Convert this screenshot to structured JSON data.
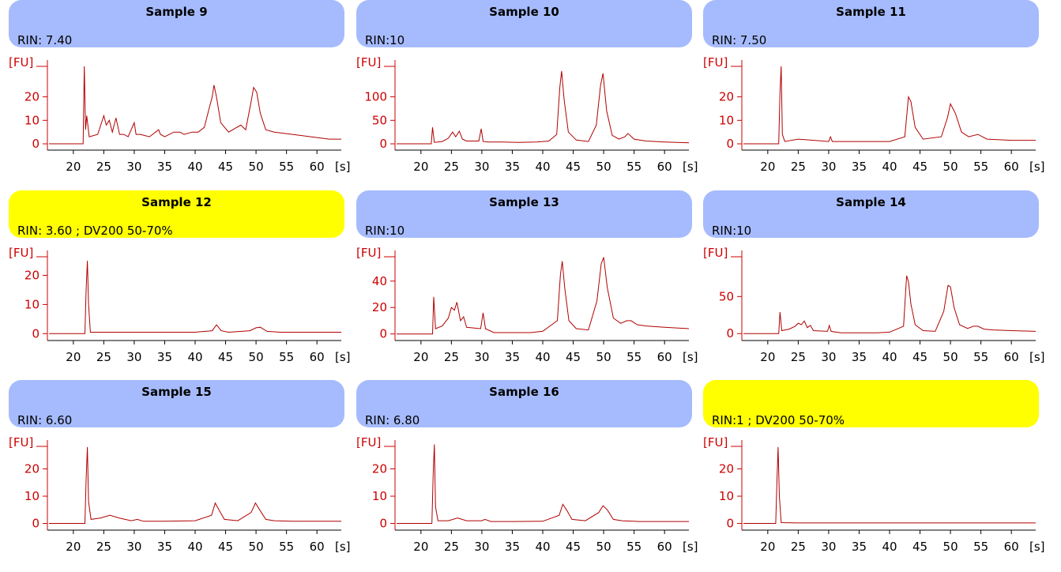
{
  "colors": {
    "blue_header": "#a6bbfd",
    "yellow_header": "#ffff00",
    "trace": "#b00000",
    "axis_red": "#cc0000",
    "axis_black": "#000000"
  },
  "chart_data": [
    {
      "type": "line",
      "title": "Sample 9",
      "rin": "RIN: 7.40",
      "header_color": "blue",
      "ylabel": "[FU]",
      "xlabel": "[s]",
      "x_range": [
        16,
        64
      ],
      "ylim": [
        -1,
        35
      ],
      "y_ticks": [
        "0",
        "10",
        "20"
      ],
      "y_tick_values": [
        0,
        10,
        20
      ],
      "x_ticks": [
        "20",
        "25",
        "30",
        "35",
        "40",
        "45",
        "50",
        "55",
        "60"
      ],
      "x": [
        16,
        21.6,
        21.8,
        22.0,
        22.2,
        22.6,
        24,
        25,
        25.4,
        25.9,
        26.4,
        27,
        27.6,
        28.3,
        29,
        30,
        30.3,
        31,
        32.5,
        34,
        34.3,
        35,
        36.5,
        37.5,
        38.2,
        39.5,
        40.5,
        41.5,
        42.3,
        42.8,
        43.1,
        43.5,
        44.2,
        45.5,
        47.5,
        48.3,
        49.2,
        49.6,
        50.1,
        50.7,
        51.6,
        53,
        56,
        59,
        62,
        64
      ],
      "values": [
        0,
        0,
        33,
        6,
        12,
        3,
        4,
        12,
        8,
        10,
        5,
        11,
        4,
        4,
        3,
        9,
        4,
        4,
        3,
        6,
        4,
        3,
        5,
        5,
        4,
        5,
        5,
        7,
        15,
        20,
        25,
        20,
        9,
        5,
        8,
        6,
        18,
        24,
        22,
        13,
        6,
        5,
        4,
        3,
        2,
        2
      ]
    },
    {
      "type": "line",
      "title": "Sample 10",
      "rin": "RIN:10",
      "header_color": "blue",
      "ylabel": "[FU]",
      "xlabel": "[s]",
      "x_range": [
        16,
        64
      ],
      "ylim": [
        -5,
        175
      ],
      "y_ticks": [
        "0",
        "50",
        "100"
      ],
      "y_tick_values": [
        0,
        50,
        100
      ],
      "x_ticks": [
        "20",
        "25",
        "30",
        "35",
        "40",
        "45",
        "50",
        "55",
        "60"
      ],
      "x": [
        16,
        21.7,
        21.9,
        22.2,
        23.5,
        24.5,
        25.2,
        25.7,
        26.3,
        26.8,
        27.5,
        29.5,
        29.9,
        30.2,
        31,
        33,
        36,
        39,
        41,
        42.3,
        42.8,
        43.1,
        43.5,
        44.2,
        45.5,
        47.5,
        48.8,
        49.5,
        49.9,
        50.5,
        51.4,
        52.5,
        53.5,
        54,
        55,
        57,
        60,
        64
      ],
      "values": [
        0,
        0,
        35,
        3,
        5,
        12,
        25,
        15,
        27,
        10,
        6,
        6,
        32,
        5,
        4,
        4,
        3,
        4,
        6,
        20,
        120,
        155,
        95,
        25,
        8,
        5,
        40,
        125,
        150,
        70,
        18,
        10,
        15,
        22,
        10,
        6,
        4,
        2
      ]
    },
    {
      "type": "line",
      "title": "Sample 11",
      "rin": "RIN: 7.50",
      "header_color": "blue",
      "ylabel": "[FU]",
      "xlabel": "[s]",
      "x_range": [
        16,
        64
      ],
      "ylim": [
        -1,
        35
      ],
      "y_ticks": [
        "0",
        "10",
        "20"
      ],
      "y_tick_values": [
        0,
        10,
        20
      ],
      "x_ticks": [
        "20",
        "25",
        "30",
        "35",
        "40",
        "45",
        "50",
        "55",
        "60"
      ],
      "x": [
        16,
        21.8,
        22.0,
        22.2,
        22.4,
        22.8,
        25,
        30,
        30.3,
        30.6,
        35,
        40,
        42.5,
        43.1,
        43.5,
        44.2,
        45.5,
        48.5,
        49.5,
        50,
        50.8,
        51.8,
        53,
        54.5,
        56,
        60,
        64
      ],
      "values": [
        0,
        0,
        22,
        33,
        4,
        1,
        2,
        1,
        3,
        1,
        1,
        1,
        3,
        20,
        18,
        7,
        2,
        3,
        11,
        17,
        13,
        5,
        3,
        4,
        2,
        1.5,
        1.5
      ]
    },
    {
      "type": "line",
      "title": "Sample 12",
      "rin": "RIN: 3.60 ; DV200 50-70%",
      "header_color": "yellow",
      "ylabel": "[FU]",
      "xlabel": "[s]",
      "x_range": [
        16,
        64
      ],
      "ylim": [
        -1,
        28
      ],
      "y_ticks": [
        "0",
        "10",
        "20"
      ],
      "y_tick_values": [
        0,
        10,
        20
      ],
      "x_ticks": [
        "20",
        "25",
        "30",
        "35",
        "40",
        "45",
        "50",
        "55",
        "60"
      ],
      "x": [
        16,
        21.9,
        22.1,
        22.3,
        22.5,
        22.8,
        25,
        30,
        35,
        40,
        42.8,
        43.5,
        44.3,
        45.5,
        49,
        50,
        50.7,
        51.8,
        54,
        58,
        64
      ],
      "values": [
        0,
        0,
        15,
        25,
        10,
        0.5,
        0.5,
        0.5,
        0.5,
        0.5,
        1,
        3,
        1,
        0.5,
        1,
        2,
        2.2,
        0.8,
        0.5,
        0.5,
        0.5
      ]
    },
    {
      "type": "line",
      "title": "Sample 13",
      "rin": "RIN:10",
      "header_color": "blue",
      "ylabel": "[FU]",
      "xlabel": "[s]",
      "x_range": [
        16,
        64
      ],
      "ylim": [
        -2,
        62
      ],
      "y_ticks": [
        "0",
        "20",
        "40"
      ],
      "y_tick_values": [
        0,
        20,
        40
      ],
      "x_ticks": [
        "20",
        "25",
        "30",
        "35",
        "40",
        "45",
        "50",
        "55",
        "60"
      ],
      "x": [
        16,
        21.9,
        22.1,
        22.4,
        23.5,
        24.5,
        25,
        25.5,
        25.9,
        26.5,
        27,
        27.5,
        29.8,
        30.2,
        30.6,
        32,
        35,
        38,
        40,
        42.4,
        42.9,
        43.2,
        43.6,
        44.3,
        45.5,
        47.5,
        48.9,
        49.6,
        50,
        50.6,
        51.6,
        52.8,
        53.8,
        54.5,
        55.5,
        57,
        60,
        64
      ],
      "values": [
        0,
        0,
        28,
        4,
        6,
        12,
        20,
        18,
        24,
        10,
        13,
        5,
        4,
        16,
        4,
        1,
        1,
        1,
        2,
        10,
        45,
        55,
        35,
        10,
        4,
        3,
        25,
        53,
        58,
        35,
        12,
        8,
        10,
        10,
        7,
        6,
        5,
        4
      ]
    },
    {
      "type": "line",
      "title": "Sample 14",
      "rin": "RIN:10",
      "header_color": "blue",
      "ylabel": "[FU]",
      "xlabel": "[s]",
      "x_range": [
        16,
        64
      ],
      "ylim": [
        -4,
        110
      ],
      "y_ticks": [
        "0",
        "50"
      ],
      "y_tick_values": [
        0,
        50
      ],
      "x_ticks": [
        "20",
        "25",
        "30",
        "35",
        "40",
        "45",
        "50",
        "55",
        "60"
      ],
      "x": [
        16,
        21.8,
        22.0,
        22.3,
        23.5,
        24.5,
        25,
        25.5,
        26,
        26.5,
        27,
        27.5,
        29.8,
        30.1,
        30.4,
        32,
        35,
        38,
        40,
        42.3,
        42.8,
        43.1,
        43.5,
        44.2,
        45.5,
        47.5,
        48.9,
        49.6,
        50,
        50.6,
        51.5,
        52.8,
        53.8,
        54.5,
        55.5,
        57,
        60,
        64
      ],
      "values": [
        0,
        0,
        29,
        4,
        6,
        10,
        14,
        12,
        17,
        8,
        11,
        4,
        3,
        11,
        3,
        1,
        1,
        1,
        2,
        10,
        78,
        70,
        40,
        12,
        4,
        3,
        30,
        65,
        63,
        35,
        12,
        7,
        10,
        10,
        6,
        5,
        4,
        3
      ]
    },
    {
      "type": "line",
      "title": "Sample 15",
      "rin": "RIN: 6.60",
      "header_color": "blue",
      "ylabel": "[FU]",
      "xlabel": "[s]",
      "x_range": [
        16,
        64
      ],
      "ylim": [
        -1,
        30
      ],
      "y_ticks": [
        "0",
        "10",
        "20"
      ],
      "y_tick_values": [
        0,
        10,
        20
      ],
      "x_ticks": [
        "20",
        "25",
        "30",
        "35",
        "40",
        "45",
        "50",
        "55",
        "60"
      ],
      "x": [
        16,
        21.9,
        22.1,
        22.3,
        22.5,
        22.9,
        24.5,
        26,
        27.5,
        29.5,
        30.5,
        31.5,
        35,
        40,
        42.7,
        43.3,
        43.9,
        44.8,
        47,
        49.2,
        49.9,
        50.6,
        51.6,
        53,
        56,
        60,
        64
      ],
      "values": [
        0,
        0,
        16,
        28,
        8,
        1.5,
        2,
        3,
        2,
        1,
        1.5,
        0.8,
        0.8,
        1,
        3,
        7.5,
        5,
        1.5,
        1,
        4,
        7.5,
        5,
        1.5,
        1,
        0.8,
        0.8,
        0.8
      ]
    },
    {
      "type": "line",
      "title": "Sample 16",
      "rin": "RIN: 6.80",
      "header_color": "blue",
      "ylabel": "[FU]",
      "xlabel": "[s]",
      "x_range": [
        16,
        64
      ],
      "ylim": [
        -1,
        30
      ],
      "y_ticks": [
        "0",
        "10",
        "20"
      ],
      "y_tick_values": [
        0,
        10,
        20
      ],
      "x_ticks": [
        "20",
        "25",
        "30",
        "35",
        "40",
        "45",
        "50",
        "55",
        "60"
      ],
      "x": [
        16,
        21.8,
        22.0,
        22.2,
        22.4,
        22.8,
        24.5,
        26,
        27.5,
        30,
        30.5,
        31.5,
        35,
        40,
        42.7,
        43.3,
        43.9,
        44.8,
        47,
        49.2,
        49.9,
        50.6,
        51.6,
        53,
        56,
        60,
        64
      ],
      "values": [
        0,
        0,
        18,
        29,
        6,
        1,
        1,
        2,
        1,
        1,
        1.5,
        0.7,
        0.7,
        0.8,
        3,
        7,
        5,
        1.5,
        1,
        4,
        6.5,
        5,
        1.5,
        1,
        0.7,
        0.7,
        0.7
      ]
    },
    {
      "type": "line",
      "title": "",
      "rin": "RIN:1 ; DV200 50-70%",
      "header_color": "yellow",
      "ylabel": "[FU]",
      "xlabel": "[s]",
      "x_range": [
        16,
        64
      ],
      "ylim": [
        -1,
        30
      ],
      "y_ticks": [
        "0",
        "10",
        "20"
      ],
      "y_tick_values": [
        0,
        10,
        20
      ],
      "x_ticks": [
        "20",
        "25",
        "30",
        "35",
        "40",
        "45",
        "50",
        "55",
        "60"
      ],
      "x": [
        16,
        21.3,
        21.5,
        21.7,
        21.9,
        22.2,
        25,
        64
      ],
      "values": [
        0,
        0,
        15,
        28,
        10,
        0.3,
        0.2,
        0.2
      ]
    }
  ]
}
